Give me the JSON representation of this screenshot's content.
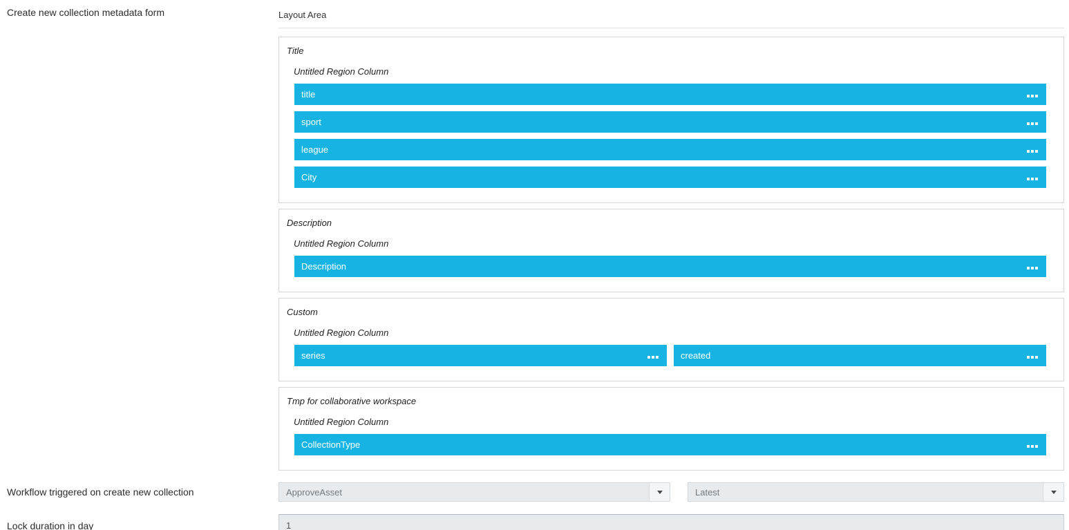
{
  "form": {
    "metadata_form_label": "Create new collection metadata form",
    "workflow_label": "Workflow triggered on create new collection",
    "lock_duration_label": "Lock duration in day",
    "lock_duration_value": "1"
  },
  "layout_area": {
    "header": "Layout Area",
    "sections": [
      {
        "title": "Title",
        "region_title": "Untitled Region Column",
        "fields": [
          "title",
          "sport",
          "league",
          "City"
        ]
      },
      {
        "title": "Description",
        "region_title": "Untitled Region Column",
        "fields": [
          "Description"
        ]
      },
      {
        "title": "Custom",
        "region_title": "Untitled Region Column",
        "fields": [
          "series",
          "created"
        ]
      },
      {
        "title": "Tmp for collaborative workspace",
        "region_title": "Untitled Region Column",
        "fields": [
          "CollectionType"
        ]
      }
    ]
  },
  "workflow": {
    "workflow_select_value": "ApproveAsset",
    "version_select_value": "Latest"
  },
  "icons": {
    "field_handle": "ellipsis-handle-icon",
    "dropdown_arrow": "triangle-down"
  },
  "colors": {
    "field_accent": "#17b4e3",
    "control_background": "#e7ebee",
    "section_border": "#d6d6d6"
  }
}
